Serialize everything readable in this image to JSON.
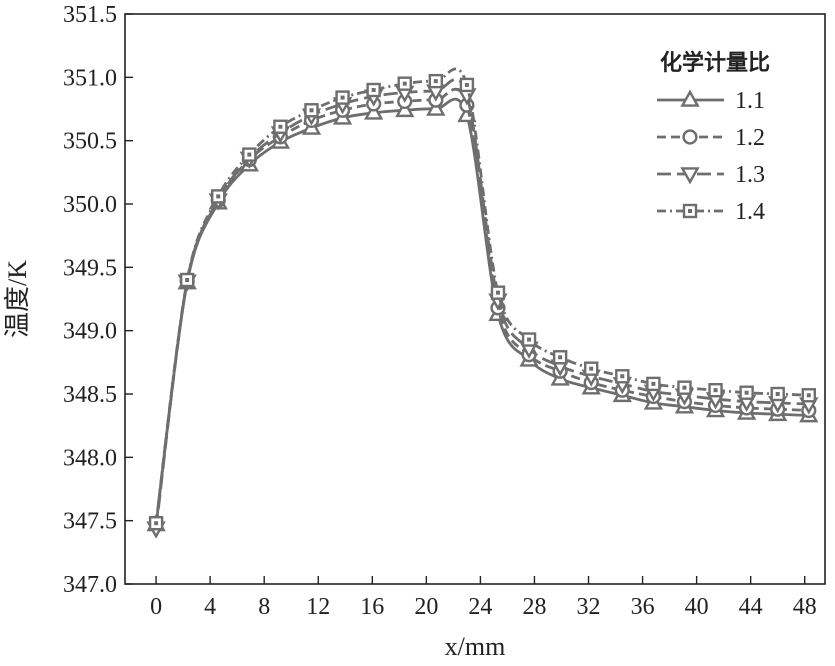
{
  "chart_data": {
    "type": "line",
    "xlabel": "x/mm",
    "ylabel": "温度/K",
    "xlim": [
      -2.3,
      49.5
    ],
    "ylim": [
      347.0,
      351.5
    ],
    "xticks": [
      0,
      4,
      8,
      12,
      16,
      20,
      24,
      28,
      32,
      36,
      40,
      44,
      48
    ],
    "xtick_labels": [
      "0",
      "4",
      "8",
      "12",
      "16",
      "20",
      "24",
      "28",
      "32",
      "36",
      "40",
      "44",
      "48"
    ],
    "yticks": [
      347.0,
      347.5,
      348.0,
      348.5,
      349.0,
      349.5,
      350.0,
      350.5,
      351.0,
      351.5
    ],
    "ytick_labels": [
      "347.0",
      "347.5",
      "348.0",
      "348.5",
      "349.0",
      "349.5",
      "350.0",
      "350.5",
      "351.0",
      "351.5"
    ],
    "legend_title": "化学计量比",
    "legend_position": "top-right",
    "grid": false,
    "line_color": "#6e6e6e",
    "x": [
      0,
      2.3,
      4.6,
      6.9,
      9.2,
      11.5,
      13.8,
      16.1,
      18.4,
      20.7,
      23.0,
      25.3,
      27.6,
      29.9,
      32.2,
      34.5,
      36.8,
      39.1,
      41.4,
      43.7,
      46.0,
      48.3
    ],
    "series": [
      {
        "name": "1.1",
        "marker": "triangle-up",
        "dash": "solid",
        "values": [
          347.47,
          349.38,
          350.01,
          350.31,
          350.49,
          350.6,
          350.68,
          350.72,
          350.74,
          350.75,
          350.7,
          349.13,
          348.77,
          348.62,
          348.55,
          348.49,
          348.43,
          348.4,
          348.37,
          348.35,
          348.34,
          348.33
        ]
      },
      {
        "name": "1.2",
        "marker": "circle",
        "dash": "dash",
        "values": [
          347.48,
          349.39,
          350.03,
          350.35,
          350.53,
          350.66,
          350.74,
          350.79,
          350.81,
          350.82,
          350.78,
          349.18,
          348.81,
          348.68,
          348.59,
          348.53,
          348.48,
          348.44,
          348.41,
          348.39,
          348.38,
          348.37
        ]
      },
      {
        "name": "1.3",
        "marker": "triangle-down",
        "dash": "longdash",
        "values": [
          347.44,
          349.39,
          350.03,
          350.36,
          350.56,
          350.7,
          350.79,
          350.85,
          350.88,
          350.89,
          350.86,
          349.24,
          348.86,
          348.72,
          348.64,
          348.58,
          348.52,
          348.49,
          348.46,
          348.44,
          348.43,
          348.42
        ]
      },
      {
        "name": "1.4",
        "marker": "square-dot",
        "dash": "dashdot",
        "values": [
          347.48,
          349.4,
          350.06,
          350.39,
          350.61,
          350.74,
          350.84,
          350.9,
          350.95,
          350.97,
          350.94,
          349.3,
          348.93,
          348.79,
          348.7,
          348.64,
          348.58,
          348.55,
          348.53,
          348.51,
          348.5,
          348.49
        ]
      }
    ]
  }
}
